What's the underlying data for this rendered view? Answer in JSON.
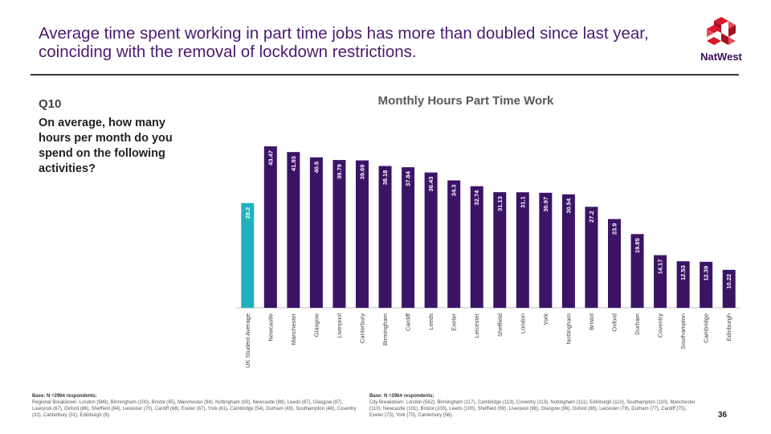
{
  "header": {
    "title": "Average time spent working in part time jobs has more than doubled since last year, coinciding with the removal of lockdown restrictions.",
    "brand": "NatWest"
  },
  "question": {
    "number": "Q10",
    "text": "On average, how many hours per month do you spend on the following activities?"
  },
  "colors": {
    "bar": "#3b1466",
    "highlight": "#1fb2bd",
    "logo": "#d9192c",
    "title": "#4b1a6f"
  },
  "chart_data": {
    "type": "bar",
    "title": "Monthly Hours Part Time Work",
    "categories": [
      "UK Student Average",
      "Newcastle",
      "Manchester",
      "Glasgow",
      "Liverpool",
      "Canterbury",
      "Birmingham",
      "Cardiff",
      "Leeds",
      "Exeter",
      "Leicester",
      "Sheffield",
      "London",
      "York",
      "Nottingham",
      "Bristol",
      "Oxford",
      "Durham",
      "Coventry",
      "Southampton",
      "Cambridge",
      "Edinburgh"
    ],
    "values": [
      28.2,
      43.47,
      41.93,
      40.5,
      39.79,
      39.69,
      38.18,
      37.84,
      36.43,
      34.3,
      32.74,
      31.13,
      31.1,
      30.97,
      30.54,
      27.2,
      23.9,
      19.85,
      14.17,
      12.53,
      12.39,
      10.22
    ],
    "labels": [
      "28.2",
      "43.47",
      "41.93",
      "40.5",
      "39.79",
      "39.69",
      "38.18",
      "37.84",
      "36.43",
      "34.3",
      "32.74",
      "31.13",
      "31.1",
      "30.97",
      "30.54",
      "27.2",
      "23.9",
      "19.85",
      "14.17",
      "12.53",
      "12.39",
      "10.22"
    ],
    "highlight_index": 0,
    "ylim": [
      0,
      45
    ],
    "xlabel": "",
    "ylabel": ""
  },
  "notes": {
    "left_heading": "Base: N =2964 respondents;",
    "left_text": "Regional Breakdown: London (989), Birmingham (100), Bristol (95), Manchester (94), Nottingham (93), Newcastle (88), Leeds (87), Glasgow (87), Liverpool (87), Oxford (86), Sheffield (84), Leicester (70), Cardiff (68), Exeter (67), York (61), Cambridge (54), Durham (49), Southampton (48), Coventry (32), Canterbury (31), Edinburgh (9).",
    "right_heading": "Base: N =2964 respondents;",
    "right_text": "City Breakdown: London (562), Birmingham (117), Cambridge (113), Coventry (113), Nottingham (111), Edinburgh (110), Southampton (110), Manchester (110), Newcastle (101), Bristol (100), Leeds (100), Sheffield (99), Liverpool (98), Glasgow (96), Oxford (86), Leicester (79), Durham (77), Cardiff (75), Exeter (73), York (70), Canterbury (56)."
  },
  "page_number": "36"
}
